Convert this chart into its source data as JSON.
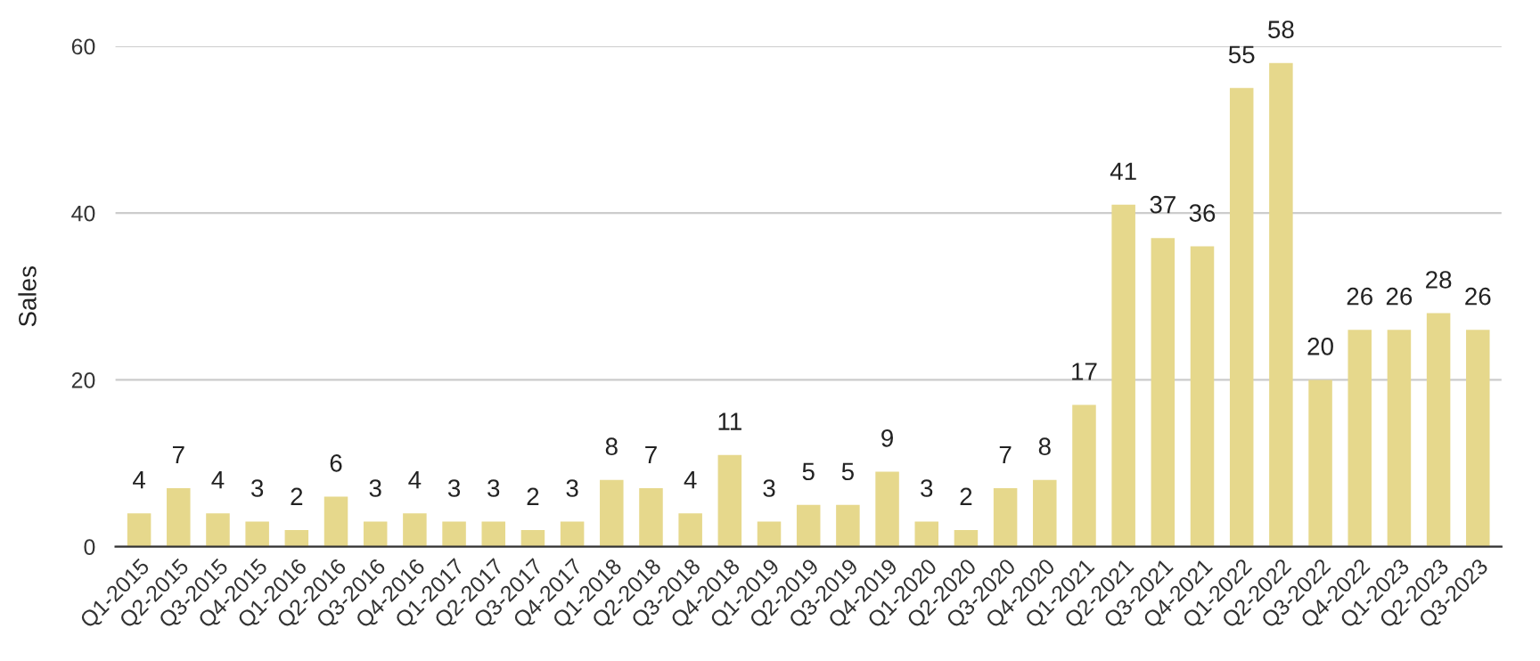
{
  "chart_data": {
    "type": "bar",
    "ylabel": "Sales",
    "categories": [
      "Q1-2015",
      "Q2-2015",
      "Q3-2015",
      "Q4-2015",
      "Q1-2016",
      "Q2-2016",
      "Q3-2016",
      "Q4-2016",
      "Q1-2017",
      "Q2-2017",
      "Q3-2017",
      "Q4-2017",
      "Q1-2018",
      "Q2-2018",
      "Q3-2018",
      "Q4-2018",
      "Q1-2019",
      "Q2-2019",
      "Q3-2019",
      "Q4-2019",
      "Q1-2020",
      "Q2-2020",
      "Q3-2020",
      "Q4-2020",
      "Q1-2021",
      "Q2-2021",
      "Q3-2021",
      "Q4-2021",
      "Q1-2022",
      "Q2-2022",
      "Q3-2022",
      "Q4-2022",
      "Q1-2023",
      "Q2-2023",
      "Q3-2023"
    ],
    "values": [
      4,
      7,
      4,
      3,
      2,
      6,
      3,
      4,
      3,
      3,
      2,
      3,
      8,
      7,
      4,
      11,
      3,
      5,
      5,
      9,
      3,
      2,
      7,
      8,
      17,
      41,
      37,
      36,
      55,
      58,
      20,
      26,
      26,
      28,
      26
    ],
    "color": "#e6d88c",
    "ylim": [
      0,
      60
    ],
    "yticks": [
      0,
      20,
      40,
      60
    ],
    "grid": "y",
    "data_labels": true,
    "legend": false
  }
}
